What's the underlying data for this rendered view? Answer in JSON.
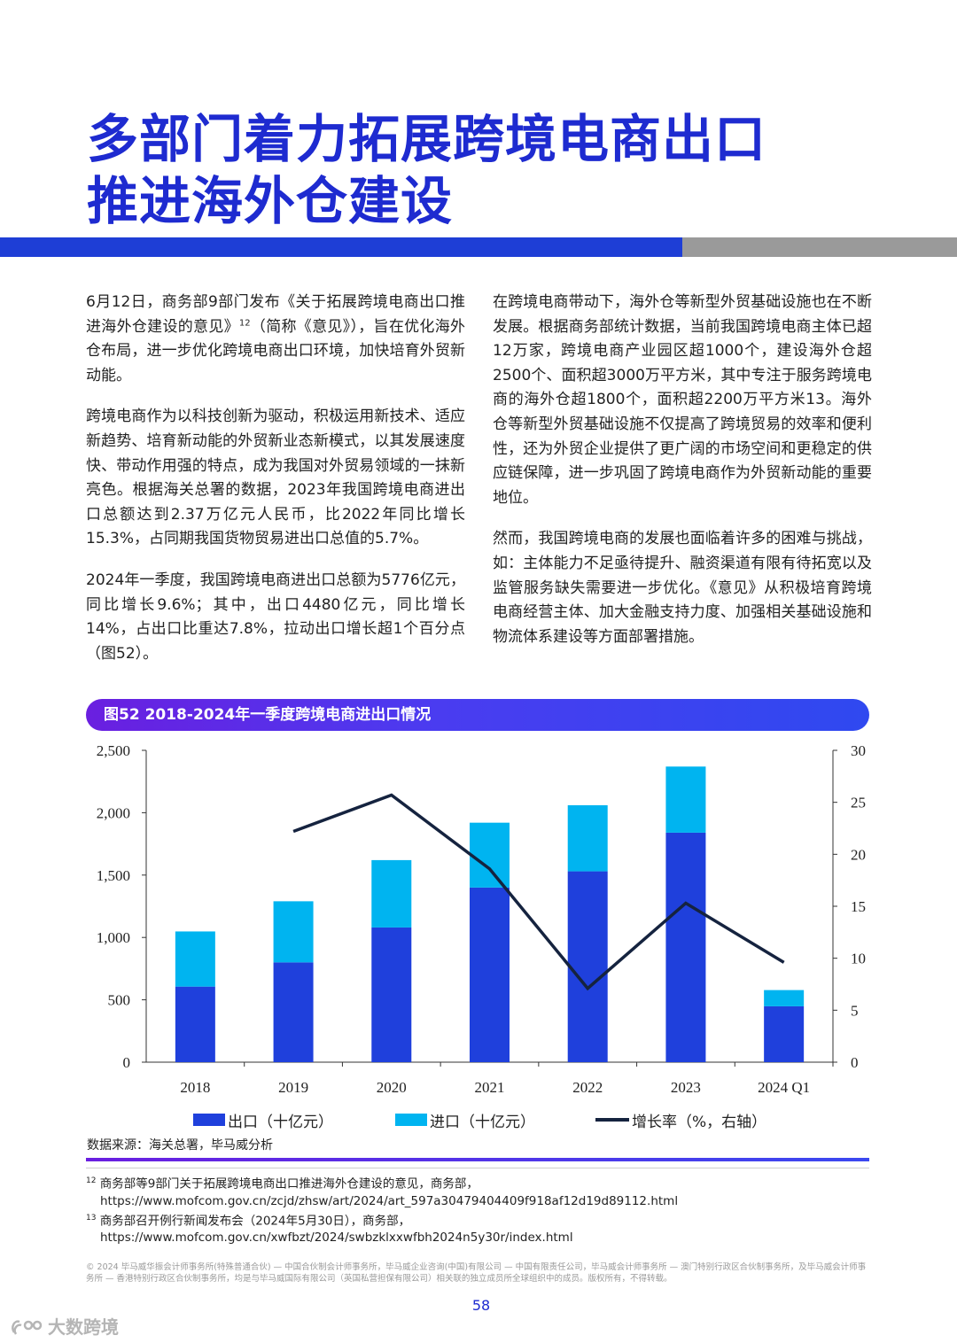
{
  "title": {
    "line1": "多部门着力拓展跨境电商出口",
    "line2": "推进海外仓建设"
  },
  "left_column": {
    "p1_before_sup": "6月12日，商务部9部门发布《关于拓展跨境电商出口推进海外仓建设的意见》",
    "p1_sup": "12",
    "p1_after_sup": "（简称《意见》），旨在优化海外仓布局，进一步优化跨境电商出口环境，加快培育外贸新动能。",
    "p2": "跨境电商作为以科技创新为驱动，积极运用新技术、适应新趋势、培育新动能的外贸新业态新模式，以其发展速度快、带动作用强的特点，成为我国对外贸易领域的一抹新亮色。根据海关总署的数据，2023年我国跨境电商进出口总额达到2.37万亿元人民币，比2022年同比增长15.3%，占同期我国货物贸易进出口总值的5.7%。",
    "p3": "2024年一季度，我国跨境电商进出口总额为5776亿元，同比增长9.6%；其中，出口4480亿元，同比增长14%，占出口比重达7.8%，拉动出口增长超1个百分点（图52）。"
  },
  "right_column": {
    "p1": "在跨境电商带动下，海外仓等新型外贸基础设施也在不断发展。根据商务部统计数据，当前我国跨境电商主体已超12万家，跨境电商产业园区超1000个，建设海外仓超2500个、面积超3000万平方米，其中专注于服务跨境电商的海外仓超1800个，面积超2200万平方米13。海外仓等新型外贸基础设施不仅提高了跨境贸易的效率和便利性，还为外贸企业提供了更广阔的市场空间和更稳定的供应链保障，进一步巩固了跨境电商作为外贸新动能的重要地位。",
    "p2": "然而，我国跨境电商的发展也面临着许多的困难与挑战，如：主体能力不足亟待提升、融资渠道有限有待拓宽以及监管服务缺失需要进一步优化。《意见》从积极培育跨境电商经营主体、加大金融支持力度、加强相关基础设施和物流体系建设等方面部署措施。"
  },
  "figure": {
    "header": "图52 2018-2024年一季度跨境电商进出口情况",
    "source": "数据来源：海关总署，毕马威分析"
  },
  "chart_data": {
    "type": "bar",
    "stacked": true,
    "categories": [
      "2018",
      "2019",
      "2020",
      "2021",
      "2022",
      "2023",
      "2024 Q1"
    ],
    "series": [
      {
        "name": "出口（十亿元）",
        "color": "#1f40dc",
        "values": [
          606,
          800,
          1080,
          1400,
          1530,
          1840,
          448
        ]
      },
      {
        "name": "进口（十亿元）",
        "color": "#00b4f0",
        "values": [
          442,
          490,
          540,
          520,
          530,
          530,
          130
        ]
      },
      {
        "name": "增长率（%，右轴）",
        "color": "#15233f",
        "axis": "right",
        "type": "line",
        "values": [
          null,
          22.2,
          25.7,
          18.6,
          7.1,
          15.3,
          9.6
        ]
      }
    ],
    "y_left": {
      "min": 0,
      "max": 2500,
      "ticks": [
        0,
        500,
        1000,
        1500,
        2000,
        2500
      ],
      "tick_labels": [
        "0",
        "500",
        "1,000",
        "1,500",
        "2,000",
        "2,500"
      ]
    },
    "y_right": {
      "min": 0,
      "max": 30,
      "ticks": [
        0,
        5,
        10,
        15,
        20,
        25,
        30
      ],
      "tick_labels": [
        "0",
        "5",
        "10",
        "15",
        "20",
        "25",
        "30"
      ]
    },
    "legend_labels": [
      "出口（十亿元）",
      "进口（十亿元）",
      "增长率（%，右轴）"
    ]
  },
  "footnotes": [
    {
      "num": "12",
      "text": "商务部等9部门关于拓展跨境电商出口推进海外仓建设的意见，商务部，",
      "url": "https://www.mofcom.gov.cn/zcjd/zhsw/art/2024/art_597a30479404409f918af12d19d89112.html"
    },
    {
      "num": "13",
      "text": "商务部召开例行新闻发布会（2024年5月30日），商务部，",
      "url": "https://www.mofcom.gov.cn/xwfbzt/2024/swbzklxxwfbh2024n5y30r/index.html"
    }
  ],
  "copyright": "© 2024 毕马威华振会计师事务所(特殊普通合伙) — 中国合伙制会计师事务所，毕马威企业咨询(中国)有限公司 — 中国有限责任公司，毕马威会计师事务所 — 澳门特别行政区合伙制事务所，及毕马威会计师事务所 — 香港特别行政区合伙制事务所，均是与毕马威国际有限公司（英国私营担保有限公司）相关联的独立成员所全球组织中的成员。版权所有，不得转载。",
  "page_number": "58",
  "watermark": "大数跨境"
}
